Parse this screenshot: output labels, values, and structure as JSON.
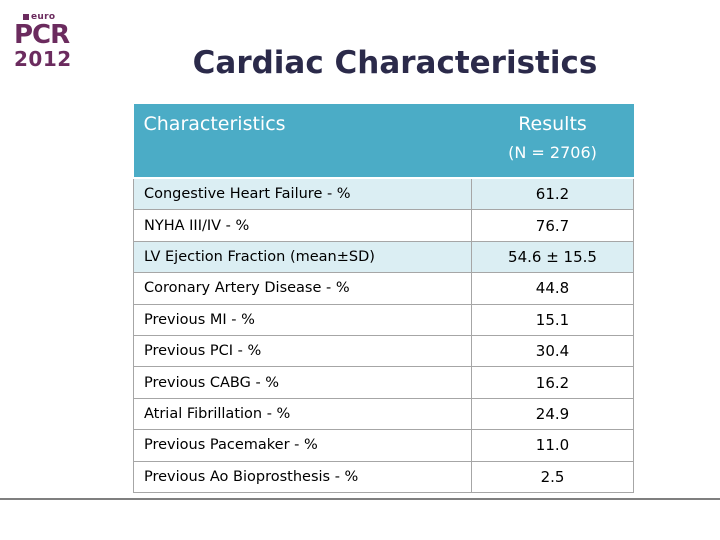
{
  "logo": {
    "euro": "euro",
    "pcr": "PCR",
    "year": "2012"
  },
  "page_title": "Cardiac Characteristics",
  "table": {
    "headers": {
      "characteristics": "Characteristics",
      "results": "Results",
      "results_sub": "(N = 2706)"
    },
    "rows": [
      {
        "label": "Congestive Heart Failure - %",
        "value": "61.2"
      },
      {
        "label": "NYHA III/IV  - %",
        "value": "76.7"
      },
      {
        "label": "LV Ejection Fraction  (mean±SD)",
        "value": "54.6 ± 15.5"
      },
      {
        "label": "Coronary Artery Disease  - %",
        "value": "44.8"
      },
      {
        "label": "Previous MI - %",
        "value": "15.1"
      },
      {
        "label": "Previous PCI  - %",
        "value": "30.4"
      },
      {
        "label": "Previous CABG - %",
        "value": "16.2"
      },
      {
        "label": "Atrial Fibrillation - %",
        "value": "24.9"
      },
      {
        "label": "Previous Pacemaker - %",
        "value": "11.0"
      },
      {
        "label": "Previous Ao Bioprosthesis - %",
        "value": "2.5"
      }
    ]
  },
  "colors": {
    "header_bg": "#4bacc6",
    "alt_row_bg": "#dbeef3",
    "title": "#2b2a4a",
    "logo": "#6b2b5e"
  }
}
